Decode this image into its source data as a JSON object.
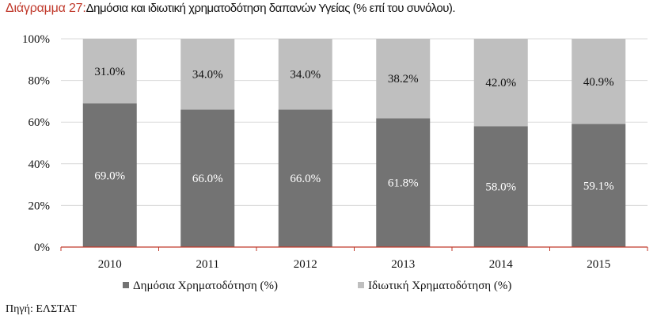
{
  "title": {
    "figure_label": "Διάγραμμα 27:",
    "text": "Δημόσια και ιδιωτική χρηματοδότηση δαπανών Υγείας (% επί του συνόλου)."
  },
  "source": "Πηγή: ΕΛΣΤΑΤ",
  "chart_data": {
    "type": "bar",
    "stacked": true,
    "categories": [
      "2010",
      "2011",
      "2012",
      "2013",
      "2014",
      "2015"
    ],
    "series": [
      {
        "name": "Δημόσια Χρηματοδότηση (%)",
        "values": [
          69.0,
          66.0,
          66.0,
          61.8,
          58.0,
          59.1
        ],
        "labels": [
          "69.0%",
          "66.0%",
          "66.0%",
          "61.8%",
          "58.0%",
          "59.1%"
        ],
        "color": "#737373",
        "label_color": "#ffffff"
      },
      {
        "name": "Ιδιωτική Χρηματοδότηση (%)",
        "values": [
          31.0,
          34.0,
          34.0,
          38.2,
          42.0,
          40.9
        ],
        "labels": [
          "31.0%",
          "34.0%",
          "34.0%",
          "38.2%",
          "42.0%",
          "40.9%"
        ],
        "color": "#bfbfbf",
        "label_color": "#111111"
      }
    ],
    "yticks": [
      "0%",
      "20%",
      "40%",
      "60%",
      "80%",
      "100%"
    ],
    "ylim": [
      0,
      100
    ],
    "grid": true,
    "gridline_color": "#d9d9d9",
    "legend_position": "bottom"
  }
}
